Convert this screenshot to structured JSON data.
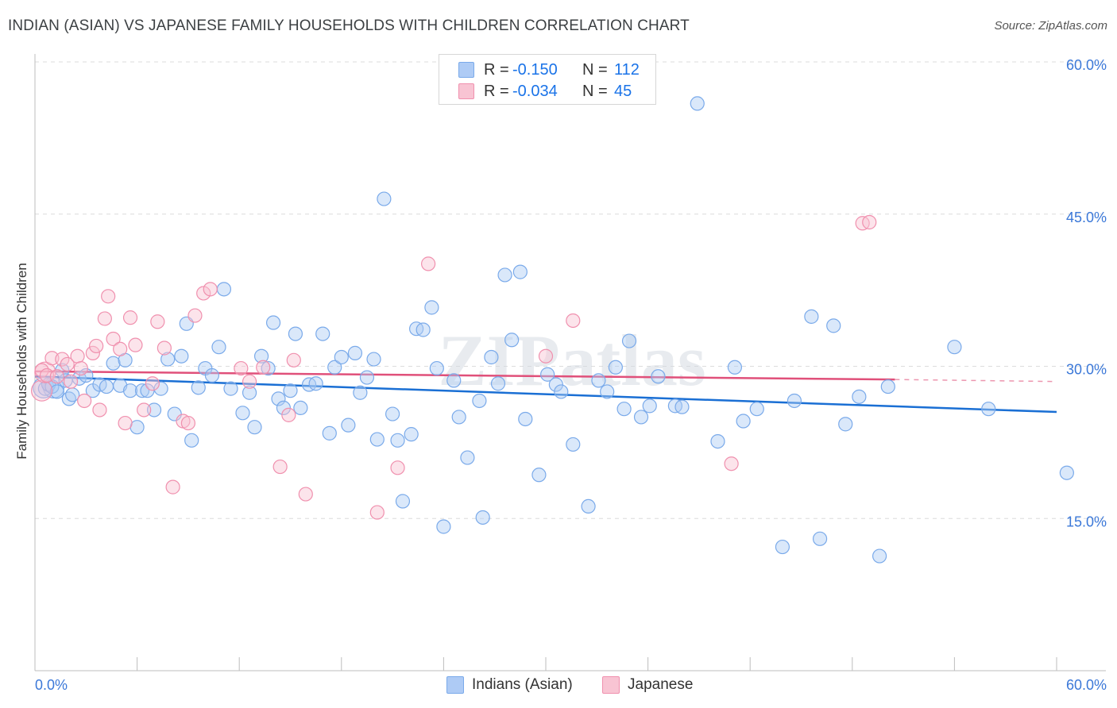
{
  "title": "INDIAN (ASIAN) VS JAPANESE FAMILY HOUSEHOLDS WITH CHILDREN CORRELATION CHART",
  "source": "Source: ZipAtlas.com",
  "watermark": "ZIPatlas",
  "legend": {
    "rows": [
      {
        "r_label": "R =",
        "r_value": "-0.150",
        "n_label": "N =",
        "n_value": "112",
        "color": "#aecbf5",
        "border": "#7aaaea"
      },
      {
        "r_label": "R =",
        "r_value": "-0.034",
        "n_label": "N =",
        "n_value": "45",
        "color": "#f8c4d3",
        "border": "#f090ae"
      }
    ]
  },
  "bottom_legend": [
    {
      "label": "Indians (Asian)",
      "color": "#aecbf5",
      "border": "#7aaaea"
    },
    {
      "label": "Japanese",
      "color": "#f8c4d3",
      "border": "#f090ae"
    }
  ],
  "chart_data": {
    "type": "scatter",
    "title": "INDIAN (ASIAN) VS JAPANESE FAMILY HOUSEHOLDS WITH CHILDREN CORRELATION CHART",
    "xlabel": "",
    "ylabel": "Family Households with Children",
    "xlim": [
      0,
      60
    ],
    "ylim": [
      0,
      60
    ],
    "x_tick_labels": [
      "0.0%",
      "60.0%"
    ],
    "y_tick_labels": [
      "15.0%",
      "30.0%",
      "45.0%",
      "60.0%"
    ],
    "y_ticks": [
      15,
      30,
      45,
      60
    ],
    "grid": true,
    "legend_position": "top-center",
    "series": [
      {
        "name": "Indians (Asian)",
        "color": "#7aaaea",
        "fill": "rgba(174,203,245,0.45)",
        "line_color": "#1a6fd4",
        "trend": {
          "x": [
            0,
            60
          ],
          "y": [
            29.0,
            25.5
          ]
        },
        "points": [
          [
            0.6,
            27.8
          ],
          [
            0.8,
            28.2
          ],
          [
            1.0,
            28.0
          ],
          [
            1.3,
            27.5
          ],
          [
            1.6,
            29.6
          ],
          [
            1.8,
            28.6
          ],
          [
            2.0,
            26.8
          ],
          [
            2.2,
            27.2
          ],
          [
            2.6,
            28.8
          ],
          [
            3.0,
            29.1
          ],
          [
            3.4,
            27.6
          ],
          [
            3.8,
            28.2
          ],
          [
            4.2,
            28.0
          ],
          [
            4.6,
            30.3
          ],
          [
            5.0,
            28.1
          ],
          [
            5.3,
            30.6
          ],
          [
            5.6,
            27.6
          ],
          [
            6.0,
            24.0
          ],
          [
            6.3,
            27.6
          ],
          [
            6.6,
            27.6
          ],
          [
            7.0,
            25.7
          ],
          [
            7.4,
            27.8
          ],
          [
            7.8,
            30.7
          ],
          [
            8.2,
            25.3
          ],
          [
            8.6,
            31.0
          ],
          [
            8.9,
            34.2
          ],
          [
            9.2,
            22.7
          ],
          [
            9.6,
            27.9
          ],
          [
            10.0,
            29.8
          ],
          [
            10.4,
            29.1
          ],
          [
            10.8,
            31.9
          ],
          [
            11.1,
            37.6
          ],
          [
            11.5,
            27.8
          ],
          [
            12.2,
            25.4
          ],
          [
            12.6,
            27.4
          ],
          [
            12.9,
            24.0
          ],
          [
            13.3,
            31.0
          ],
          [
            13.7,
            29.8
          ],
          [
            14.0,
            34.3
          ],
          [
            14.3,
            26.8
          ],
          [
            14.6,
            25.9
          ],
          [
            15.0,
            27.6
          ],
          [
            15.3,
            33.2
          ],
          [
            15.6,
            25.9
          ],
          [
            16.1,
            28.2
          ],
          [
            16.5,
            28.3
          ],
          [
            16.9,
            33.2
          ],
          [
            17.3,
            23.4
          ],
          [
            17.6,
            29.9
          ],
          [
            18.0,
            30.9
          ],
          [
            18.4,
            24.2
          ],
          [
            18.8,
            31.3
          ],
          [
            19.1,
            27.4
          ],
          [
            19.5,
            28.9
          ],
          [
            19.9,
            30.7
          ],
          [
            20.1,
            22.8
          ],
          [
            20.5,
            46.5
          ],
          [
            21.0,
            25.3
          ],
          [
            21.3,
            22.7
          ],
          [
            21.6,
            16.7
          ],
          [
            22.1,
            23.3
          ],
          [
            22.4,
            33.7
          ],
          [
            22.8,
            33.6
          ],
          [
            23.3,
            35.8
          ],
          [
            23.6,
            29.8
          ],
          [
            24.0,
            14.2
          ],
          [
            24.6,
            28.6
          ],
          [
            24.9,
            25.0
          ],
          [
            25.4,
            21.0
          ],
          [
            26.1,
            26.6
          ],
          [
            26.3,
            15.1
          ],
          [
            26.8,
            30.9
          ],
          [
            27.2,
            28.3
          ],
          [
            27.6,
            39.0
          ],
          [
            28.0,
            32.6
          ],
          [
            28.5,
            39.3
          ],
          [
            28.8,
            24.8
          ],
          [
            29.6,
            19.3
          ],
          [
            30.1,
            29.2
          ],
          [
            30.6,
            28.2
          ],
          [
            30.9,
            27.5
          ],
          [
            31.6,
            22.3
          ],
          [
            32.5,
            16.2
          ],
          [
            33.1,
            28.6
          ],
          [
            33.6,
            27.5
          ],
          [
            34.1,
            29.9
          ],
          [
            34.6,
            25.8
          ],
          [
            34.9,
            32.5
          ],
          [
            35.6,
            25.0
          ],
          [
            36.1,
            26.1
          ],
          [
            36.6,
            29.0
          ],
          [
            37.6,
            26.1
          ],
          [
            38.0,
            26.0
          ],
          [
            38.9,
            55.9
          ],
          [
            40.1,
            22.6
          ],
          [
            41.1,
            29.9
          ],
          [
            41.6,
            24.6
          ],
          [
            42.4,
            25.8
          ],
          [
            43.9,
            12.2
          ],
          [
            44.6,
            26.6
          ],
          [
            45.6,
            34.9
          ],
          [
            46.1,
            13.0
          ],
          [
            46.9,
            34.0
          ],
          [
            47.6,
            24.3
          ],
          [
            48.4,
            27.0
          ],
          [
            49.6,
            11.3
          ],
          [
            50.1,
            28.0
          ],
          [
            54.0,
            31.9
          ],
          [
            56.0,
            25.8
          ],
          [
            60.6,
            19.5
          ]
        ],
        "big_points": [
          [
            0.5,
            27.9
          ],
          [
            1.1,
            27.9
          ]
        ]
      },
      {
        "name": "Japanese",
        "color": "#f090ae",
        "fill": "rgba(248,196,211,0.45)",
        "line_color": "#e0507a",
        "trend": {
          "x": [
            0,
            50.5
          ],
          "y": [
            29.5,
            28.7
          ]
        },
        "trend_dashed": {
          "x": [
            50.5,
            60
          ],
          "y": [
            28.7,
            28.5
          ]
        },
        "points": [
          [
            0.4,
            29.6
          ],
          [
            0.7,
            29.1
          ],
          [
            1.0,
            30.8
          ],
          [
            1.3,
            29.0
          ],
          [
            1.6,
            30.7
          ],
          [
            1.9,
            30.2
          ],
          [
            2.1,
            28.5
          ],
          [
            2.5,
            31.0
          ],
          [
            2.7,
            29.8
          ],
          [
            2.9,
            26.6
          ],
          [
            3.4,
            31.3
          ],
          [
            3.6,
            32.0
          ],
          [
            3.8,
            25.7
          ],
          [
            4.1,
            34.7
          ],
          [
            4.3,
            36.9
          ],
          [
            4.6,
            32.7
          ],
          [
            5.0,
            31.7
          ],
          [
            5.3,
            24.4
          ],
          [
            5.6,
            34.8
          ],
          [
            5.9,
            32.1
          ],
          [
            6.4,
            25.7
          ],
          [
            6.9,
            28.3
          ],
          [
            7.2,
            34.4
          ],
          [
            7.6,
            31.8
          ],
          [
            8.1,
            18.1
          ],
          [
            8.7,
            24.6
          ],
          [
            9.0,
            24.4
          ],
          [
            9.4,
            35.0
          ],
          [
            9.9,
            37.2
          ],
          [
            10.3,
            37.6
          ],
          [
            12.1,
            29.8
          ],
          [
            12.6,
            28.5
          ],
          [
            13.4,
            29.9
          ],
          [
            14.4,
            20.1
          ],
          [
            14.9,
            25.2
          ],
          [
            15.2,
            30.6
          ],
          [
            15.9,
            17.4
          ],
          [
            20.1,
            15.6
          ],
          [
            21.3,
            20.0
          ],
          [
            23.1,
            40.1
          ],
          [
            30.0,
            31.0
          ],
          [
            31.6,
            34.5
          ],
          [
            40.9,
            20.4
          ],
          [
            48.6,
            44.1
          ],
          [
            49.0,
            44.2
          ]
        ],
        "big_points": [
          [
            0.4,
            27.6
          ],
          [
            0.6,
            29.4
          ]
        ]
      }
    ]
  }
}
